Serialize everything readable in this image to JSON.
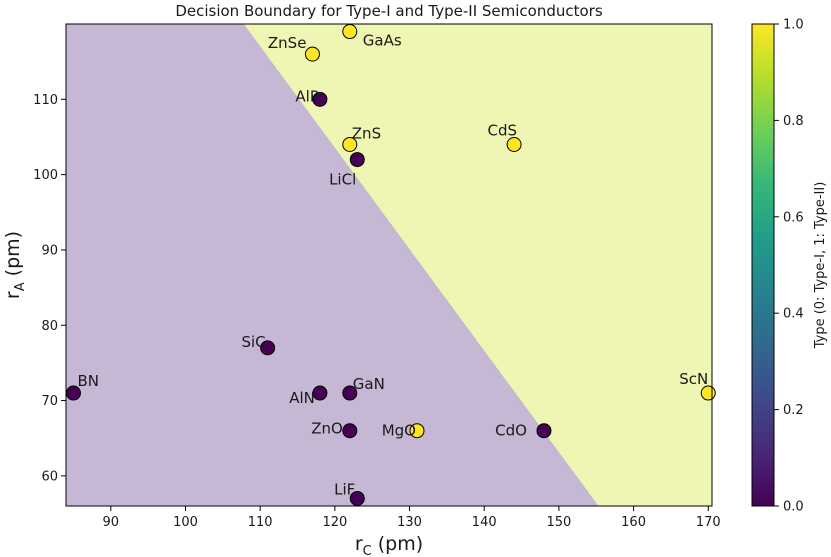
{
  "chart_data": {
    "type": "scatter",
    "title": "Decision Boundary for Type-I and Type-II Semiconductors",
    "xlabel": "r",
    "xlabel_sub": "C",
    "xlabel_unit": " (pm)",
    "ylabel": "r",
    "ylabel_sub": "A",
    "ylabel_unit": " (pm)",
    "xlim": [
      84,
      170.5
    ],
    "ylim": [
      56,
      120
    ],
    "xticks": [
      90,
      100,
      110,
      120,
      130,
      140,
      150,
      160,
      170
    ],
    "yticks": [
      60,
      70,
      80,
      90,
      100,
      110
    ],
    "decision_boundary": {
      "points": [
        [
          107.7,
          120
        ],
        [
          155.2,
          56
        ]
      ],
      "type_i_region": "left",
      "type_i_color": "#c6b7d4",
      "type_ii_color": "#eff5b3",
      "boundary_color": "#b9b9d2"
    },
    "colors": {
      "type_i": "#440154",
      "type_ii": "#fde725",
      "marker_edge": "#000000"
    },
    "points": [
      {
        "name": "BN",
        "x": 85,
        "y": 71,
        "type": 0
      },
      {
        "name": "SiC",
        "x": 111,
        "y": 77,
        "type": 0
      },
      {
        "name": "AlN",
        "x": 118,
        "y": 71,
        "type": 0
      },
      {
        "name": "GaN",
        "x": 122,
        "y": 71,
        "type": 0
      },
      {
        "name": "ZnO",
        "x": 122,
        "y": 66,
        "type": 0
      },
      {
        "name": "MgO",
        "x": 131,
        "y": 66,
        "type": 1
      },
      {
        "name": "CdO",
        "x": 148,
        "y": 66,
        "type": 0
      },
      {
        "name": "LiF",
        "x": 123,
        "y": 57,
        "type": 0
      },
      {
        "name": "ScN",
        "x": 170,
        "y": 71,
        "type": 1
      },
      {
        "name": "AlP",
        "x": 118,
        "y": 110,
        "type": 0
      },
      {
        "name": "ZnS",
        "x": 122,
        "y": 104,
        "type": 1
      },
      {
        "name": "LiCl",
        "x": 123,
        "y": 102,
        "type": 0
      },
      {
        "name": "CdS",
        "x": 144,
        "y": 104,
        "type": 1
      },
      {
        "name": "ZnSe",
        "x": 117,
        "y": 116,
        "type": 1
      },
      {
        "name": "GaAs",
        "x": 122,
        "y": 119,
        "type": 1
      }
    ],
    "colorbar": {
      "label": "Type (0: Type-I, 1: Type-II)",
      "range": [
        0,
        1
      ],
      "ticks": [
        "0.0",
        "0.2",
        "0.4",
        "0.6",
        "0.8",
        "1.0"
      ],
      "colormap": "viridis",
      "stops": [
        "#440154",
        "#482878",
        "#3e4a89",
        "#31688e",
        "#26828e",
        "#1f9e89",
        "#35b779",
        "#6ece58",
        "#b5de2b",
        "#fde725"
      ]
    }
  }
}
